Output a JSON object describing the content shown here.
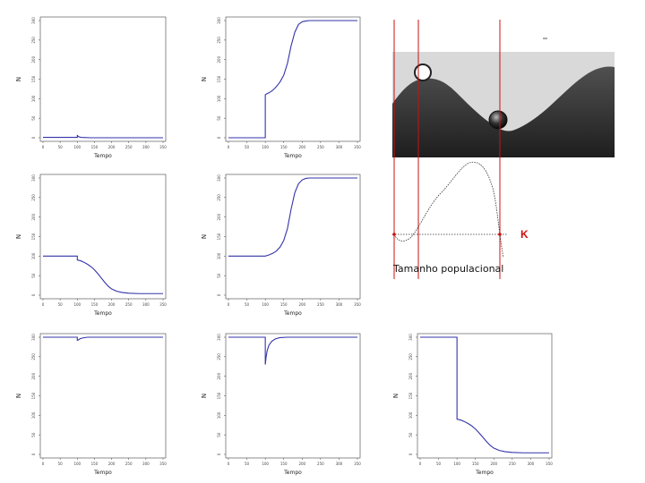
{
  "chart_data": [
    {
      "id": "p1",
      "type": "line",
      "xlabel": "Tempo",
      "ylabel": "N",
      "xlim": [
        0,
        350
      ],
      "ylim": [
        0,
        300
      ],
      "xticks": [
        "0",
        "50",
        "100",
        "150",
        "200",
        "250",
        "300",
        "350"
      ],
      "yticks": [
        "0",
        "50",
        "100",
        "150",
        "200",
        "250",
        "300"
      ],
      "series": [
        {
          "color": "#3333aa",
          "x": [
            0,
            99,
            100,
            100,
            101,
            103,
            110,
            140,
            200,
            350
          ],
          "y": [
            1,
            1,
            1,
            7,
            5,
            3,
            1,
            0,
            0,
            0
          ]
        }
      ]
    },
    {
      "id": "p2",
      "type": "line",
      "xlabel": "Tempo",
      "ylabel": "N",
      "xlim": [
        0,
        350
      ],
      "ylim": [
        0,
        300
      ],
      "xticks": [
        "0",
        "50",
        "100",
        "150",
        "200",
        "250",
        "300",
        "350"
      ],
      "yticks": [
        "0",
        "50",
        "100",
        "150",
        "200",
        "250",
        "300"
      ],
      "series": [
        {
          "color": "#3333aa",
          "x": [
            0,
            99,
            100,
            100,
            105,
            110,
            118,
            125,
            132,
            140,
            150,
            160,
            170,
            180,
            190,
            200,
            210,
            220,
            350
          ],
          "y": [
            0,
            0,
            0,
            110,
            113,
            115,
            120,
            126,
            133,
            143,
            160,
            190,
            235,
            270,
            290,
            297,
            299,
            300,
            300
          ]
        }
      ]
    },
    {
      "id": "p3",
      "type": "line",
      "xlabel": "Tempo",
      "ylabel": "N",
      "xlim": [
        0,
        350
      ],
      "ylim": [
        0,
        300
      ],
      "xticks": [
        "0",
        "50",
        "100",
        "150",
        "200",
        "250",
        "300",
        "350"
      ],
      "yticks": [
        "0",
        "50",
        "100",
        "150",
        "200",
        "250",
        "300"
      ],
      "series": [
        {
          "color": "#3333aa",
          "x": [
            0,
            99,
            100,
            100,
            110,
            120,
            130,
            140,
            150,
            160,
            170,
            180,
            190,
            200,
            215,
            230,
            250,
            280,
            350
          ],
          "y": [
            100,
            100,
            100,
            90,
            88,
            84,
            79,
            73,
            65,
            55,
            44,
            33,
            23,
            16,
            10,
            7,
            5,
            4,
            4
          ]
        }
      ]
    },
    {
      "id": "p4",
      "type": "line",
      "xlabel": "Tempo",
      "ylabel": "N",
      "xlim": [
        0,
        350
      ],
      "ylim": [
        0,
        300
      ],
      "xticks": [
        "0",
        "50",
        "100",
        "150",
        "200",
        "250",
        "300",
        "350"
      ],
      "yticks": [
        "0",
        "50",
        "100",
        "150",
        "200",
        "250",
        "300"
      ],
      "series": [
        {
          "color": "#3333aa",
          "x": [
            0,
            99,
            100,
            110,
            120,
            130,
            140,
            150,
            160,
            170,
            180,
            190,
            200,
            210,
            220,
            350
          ],
          "y": [
            100,
            100,
            100,
            103,
            107,
            113,
            123,
            140,
            170,
            220,
            262,
            285,
            295,
            299,
            300,
            300
          ]
        }
      ]
    },
    {
      "id": "p5",
      "type": "line",
      "xlabel": "Tempo",
      "ylabel": "N",
      "xlim": [
        0,
        350
      ],
      "ylim": [
        0,
        300
      ],
      "xticks": [
        "0",
        "50",
        "100",
        "150",
        "200",
        "250",
        "300",
        "350"
      ],
      "yticks": [
        "0",
        "50",
        "100",
        "150",
        "200",
        "250",
        "300"
      ],
      "series": [
        {
          "color": "#3333aa",
          "x": [
            0,
            99,
            100,
            100,
            103,
            108,
            115,
            130,
            350
          ],
          "y": [
            300,
            300,
            300,
            292,
            293,
            296,
            298,
            300,
            300
          ]
        }
      ]
    },
    {
      "id": "p6",
      "type": "line",
      "xlabel": "Tempo",
      "ylabel": "N",
      "xlim": [
        0,
        350
      ],
      "ylim": [
        0,
        300
      ],
      "xticks": [
        "0",
        "50",
        "100",
        "150",
        "200",
        "250",
        "300",
        "350"
      ],
      "yticks": [
        "0",
        "50",
        "100",
        "150",
        "200",
        "250",
        "300"
      ],
      "series": [
        {
          "color": "#3333aa",
          "x": [
            0,
            99,
            100,
            100,
            102,
            105,
            110,
            118,
            128,
            140,
            160,
            350
          ],
          "y": [
            300,
            300,
            300,
            230,
            248,
            265,
            280,
            290,
            296,
            299,
            300,
            300
          ]
        }
      ]
    },
    {
      "id": "p7",
      "type": "line",
      "xlabel": "Tempo",
      "ylabel": "N",
      "xlim": [
        0,
        350
      ],
      "ylim": [
        0,
        300
      ],
      "xticks": [
        "0",
        "50",
        "100",
        "150",
        "200",
        "250",
        "300",
        "350"
      ],
      "yticks": [
        "0",
        "50",
        "100",
        "150",
        "200",
        "250",
        "300"
      ],
      "series": [
        {
          "color": "#3333aa",
          "x": [
            0,
            99,
            100,
            100,
            110,
            120,
            130,
            140,
            150,
            160,
            170,
            180,
            190,
            200,
            215,
            230,
            250,
            280,
            350
          ],
          "y": [
            300,
            300,
            300,
            90,
            88,
            84,
            79,
            73,
            65,
            55,
            44,
            33,
            23,
            16,
            10,
            7,
            5,
            4,
            4
          ]
        }
      ]
    }
  ],
  "landscape": {
    "k_label": "K",
    "pop_label": "Tamanho populacional",
    "colors": {
      "dark": "#3a3a3a",
      "light": "#dcdcdc",
      "red": "#cc1111"
    }
  }
}
